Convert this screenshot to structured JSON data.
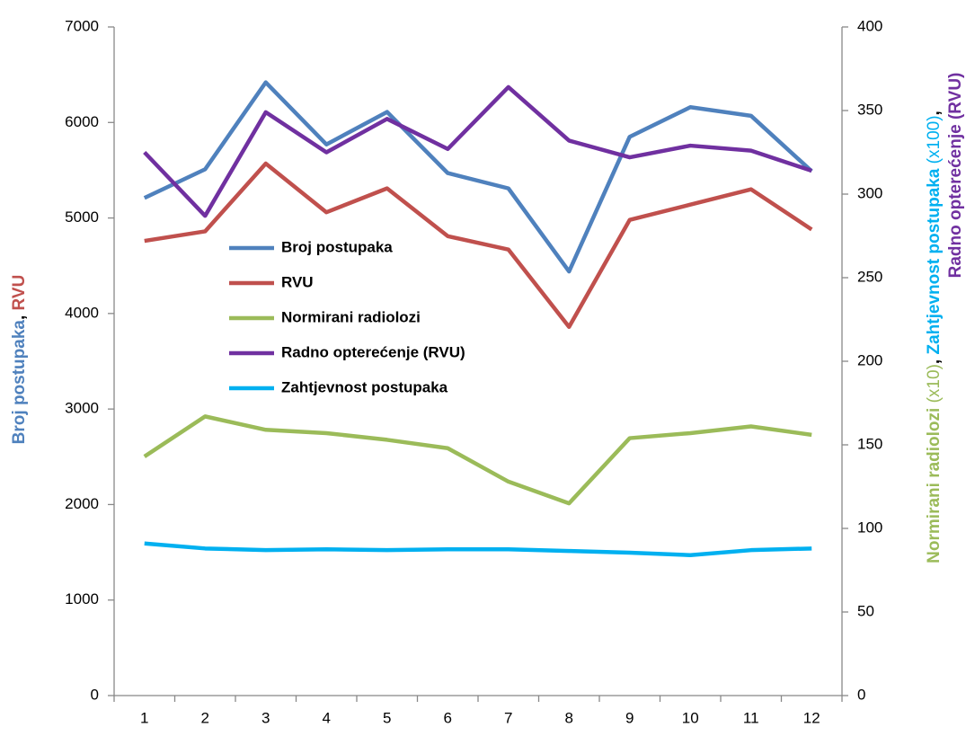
{
  "chart_data": {
    "type": "line",
    "categories": [
      1,
      2,
      3,
      4,
      5,
      6,
      7,
      8,
      9,
      10,
      11,
      12
    ],
    "series": [
      {
        "name": "Broj postupaka",
        "color": "#4f81bd",
        "axis": "y",
        "values": [
          5210,
          5510,
          6420,
          5770,
          6110,
          5470,
          5310,
          4440,
          5850,
          6160,
          6070,
          5490
        ]
      },
      {
        "name": "RVU",
        "color": "#c0504d",
        "axis": "y",
        "values": [
          4760,
          4860,
          5570,
          5060,
          5310,
          4810,
          4670,
          3860,
          4980,
          5140,
          5300,
          4880
        ]
      },
      {
        "name": "Normirani radiolozi",
        "color": "#9bbb59",
        "axis": "y2",
        "values": [
          143,
          167,
          159,
          157,
          153,
          148,
          128,
          115,
          154,
          157,
          161,
          156
        ]
      },
      {
        "name": "Radno opterećenje (RVU)",
        "color": "#7030a0",
        "axis": "y2",
        "values": [
          325,
          287,
          349,
          325,
          345,
          327,
          364,
          332,
          322,
          329,
          326,
          314
        ]
      },
      {
        "name": "Zahtjevnost postupaka",
        "color": "#00b0f0",
        "axis": "y2",
        "values": [
          91,
          88,
          87,
          87.5,
          87,
          87.5,
          87.5,
          86.5,
          85.5,
          84,
          87,
          88
        ]
      }
    ],
    "ylim": [
      0,
      7000
    ],
    "yticks": [
      0,
      1000,
      2000,
      3000,
      4000,
      5000,
      6000,
      7000
    ],
    "y2lim": [
      0,
      400
    ],
    "y2ticks": [
      0,
      50,
      100,
      150,
      200,
      250,
      300,
      350,
      400
    ],
    "y_label": [
      {
        "text": "Broj postupaka",
        "color": "#4f81bd"
      },
      {
        "text": ", ",
        "color": "#000000"
      },
      {
        "text": "RVU",
        "color": "#c0504d"
      }
    ],
    "y2_label": [
      [
        {
          "text": "Normirani radiolozi",
          "color": "#9bbb59",
          "weight": "bold"
        },
        {
          "text": " (x10)",
          "color": "#9bbb59",
          "weight": "normal"
        },
        {
          "text": ", ",
          "color": "#000000",
          "weight": "bold"
        },
        {
          "text": "Zahtjevnost postupaka",
          "color": "#00b0f0",
          "weight": "bold"
        },
        {
          "text": " (x100)",
          "color": "#00b0f0",
          "weight": "normal"
        },
        {
          "text": ",",
          "color": "#000000",
          "weight": "bold"
        }
      ],
      [
        {
          "text": "Radno opterećenje (RVU)",
          "color": "#7030a0",
          "weight": "bold"
        }
      ]
    ],
    "legend": "inside-left"
  }
}
